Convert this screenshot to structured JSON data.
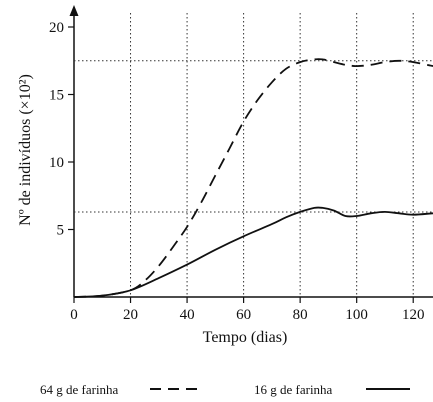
{
  "chart_data": {
    "type": "line",
    "xlabel": "Tempo (dias)",
    "ylabel": "Nº de indivíduos (×10²)",
    "xlim": [
      0,
      127
    ],
    "ylim": [
      0,
      20
    ],
    "xticks": [
      0,
      20,
      40,
      60,
      80,
      100,
      120
    ],
    "yticks": [
      5,
      10,
      15,
      20
    ],
    "x_tick_labels": [
      "0",
      "20",
      "40",
      "60",
      "80",
      "100",
      "120"
    ],
    "y_tick_labels": [
      "5",
      "10",
      "15",
      "20"
    ],
    "grid": "dotted vertical lines at each x tick from 20 to 120; dotted horizontal reference lines at about 17.5 and 6.3",
    "reference_lines": [
      17.5,
      6.3
    ],
    "legend_position": "bottom",
    "series": [
      {
        "name": "64 g de farinha",
        "style": "dashed",
        "x": [
          0,
          10,
          20,
          25,
          30,
          35,
          40,
          45,
          50,
          55,
          60,
          65,
          70,
          75,
          80,
          85,
          88,
          92,
          96,
          100,
          105,
          110,
          115,
          120,
          127
        ],
        "y": [
          0,
          0.1,
          0.5,
          1.2,
          2.3,
          3.7,
          5.2,
          7.0,
          9.0,
          11.0,
          13.0,
          14.6,
          15.9,
          16.9,
          17.4,
          17.6,
          17.6,
          17.4,
          17.2,
          17.1,
          17.2,
          17.4,
          17.5,
          17.4,
          17.1
        ]
      },
      {
        "name": "16 g de farinha",
        "style": "solid",
        "x": [
          0,
          10,
          20,
          30,
          40,
          50,
          60,
          70,
          75,
          80,
          85,
          88,
          92,
          96,
          100,
          105,
          110,
          115,
          120,
          127
        ],
        "y": [
          0,
          0.1,
          0.5,
          1.4,
          2.4,
          3.5,
          4.5,
          5.4,
          5.9,
          6.3,
          6.6,
          6.6,
          6.4,
          6.0,
          6.0,
          6.2,
          6.3,
          6.2,
          6.1,
          6.2
        ]
      }
    ]
  }
}
